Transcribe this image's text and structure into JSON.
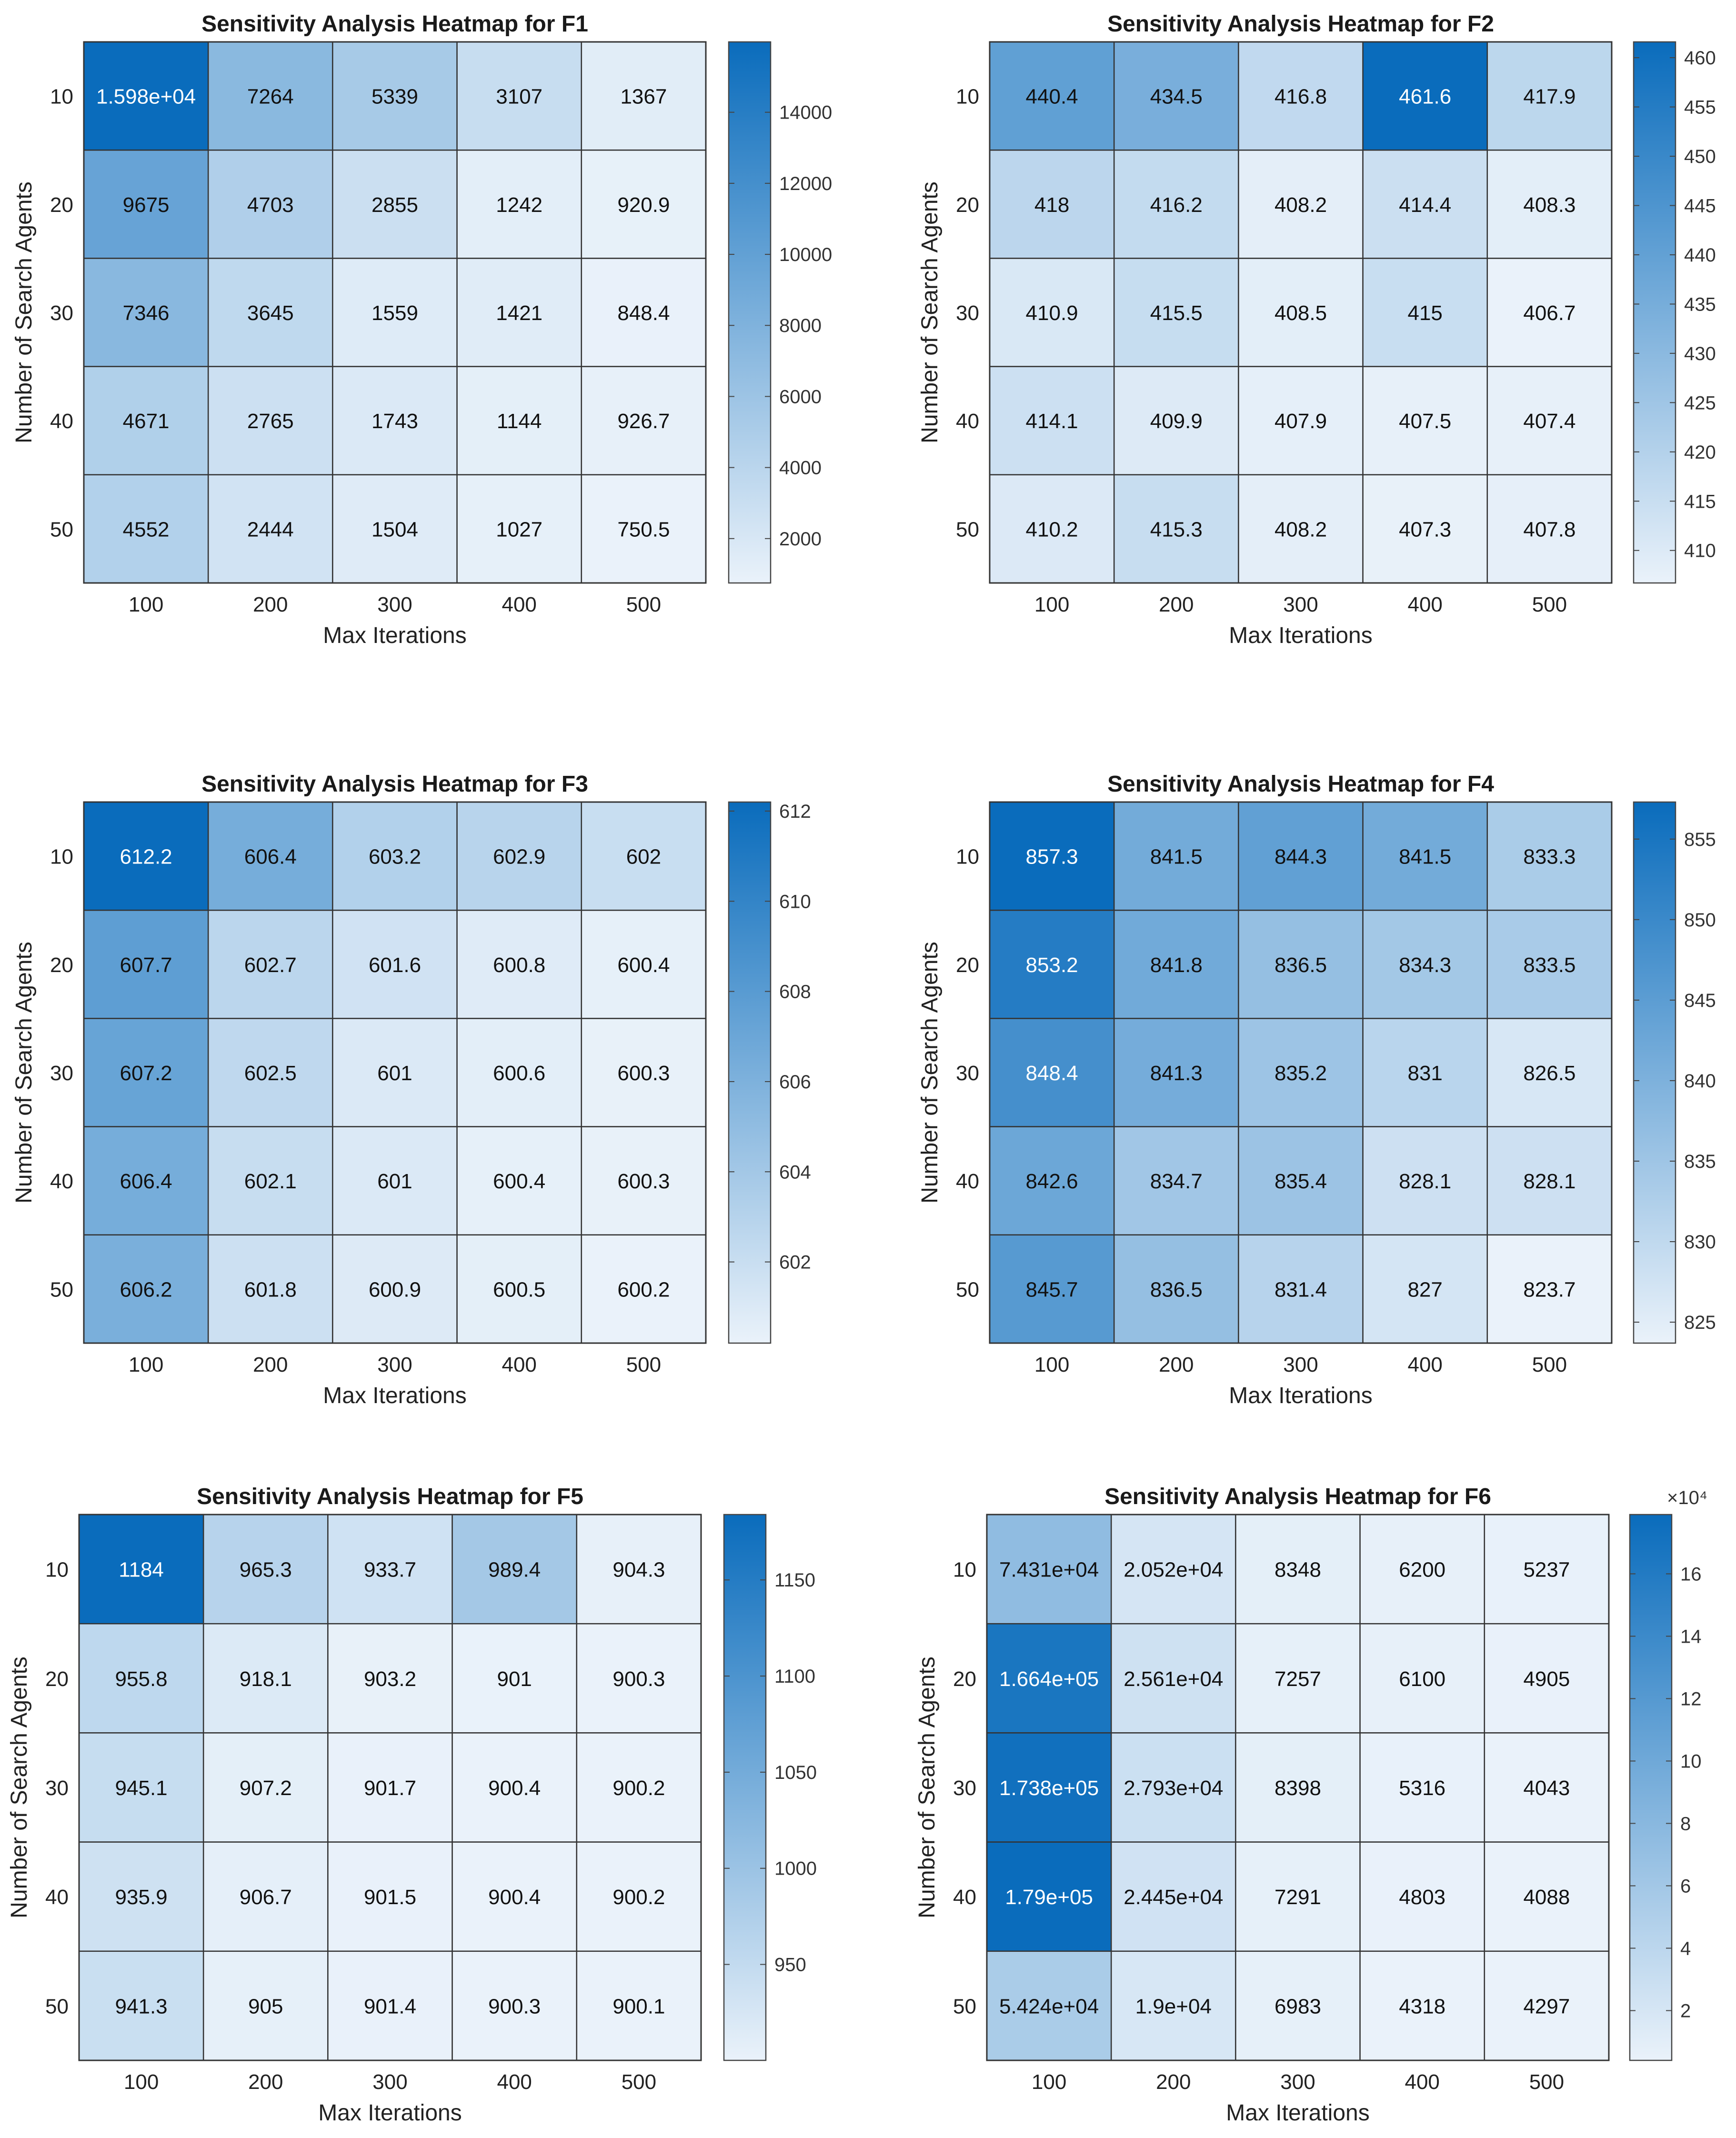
{
  "chart_data": [
    {
      "type": "heatmap",
      "title": "Sensitivity Analysis Heatmap for F1",
      "xlabel": "Max Iterations",
      "ylabel": "Number of Search Agents",
      "x_categories": [
        "100",
        "200",
        "300",
        "400",
        "500"
      ],
      "y_categories": [
        "10",
        "20",
        "30",
        "40",
        "50"
      ],
      "cell_labels": [
        [
          "1.598e+04",
          "7264",
          "5339",
          "3107",
          "1367"
        ],
        [
          "9675",
          "4703",
          "2855",
          "1242",
          "920.9"
        ],
        [
          "7346",
          "3645",
          "1559",
          "1421",
          "848.4"
        ],
        [
          "4671",
          "2765",
          "1743",
          "1144",
          "926.7"
        ],
        [
          "4552",
          "2444",
          "1504",
          "1027",
          "750.5"
        ]
      ],
      "values": [
        [
          15980,
          7264,
          5339,
          3107,
          1367
        ],
        [
          9675,
          4703,
          2855,
          1242,
          920.9
        ],
        [
          7346,
          3645,
          1559,
          1421,
          848.4
        ],
        [
          4671,
          2765,
          1743,
          1144,
          926.7
        ],
        [
          4552,
          2444,
          1504,
          1027,
          750.5
        ]
      ],
      "colorbar": {
        "range": [
          750.5,
          15980
        ],
        "ticks": [
          2000,
          4000,
          6000,
          8000,
          10000,
          12000,
          14000
        ],
        "tick_labels": [
          "2000",
          "4000",
          "6000",
          "8000",
          "10000",
          "12000",
          "14000"
        ],
        "exponent": ""
      }
    },
    {
      "type": "heatmap",
      "title": "Sensitivity Analysis Heatmap for F2",
      "xlabel": "Max Iterations",
      "ylabel": "Number of Search Agents",
      "x_categories": [
        "100",
        "200",
        "300",
        "400",
        "500"
      ],
      "y_categories": [
        "10",
        "20",
        "30",
        "40",
        "50"
      ],
      "cell_labels": [
        [
          "440.4",
          "434.5",
          "416.8",
          "461.6",
          "417.9"
        ],
        [
          "418",
          "416.2",
          "408.2",
          "414.4",
          "408.3"
        ],
        [
          "410.9",
          "415.5",
          "408.5",
          "415",
          "406.7"
        ],
        [
          "414.1",
          "409.9",
          "407.9",
          "407.5",
          "407.4"
        ],
        [
          "410.2",
          "415.3",
          "408.2",
          "407.3",
          "407.8"
        ]
      ],
      "values": [
        [
          440.4,
          434.5,
          416.8,
          461.6,
          417.9
        ],
        [
          418,
          416.2,
          408.2,
          414.4,
          408.3
        ],
        [
          410.9,
          415.5,
          408.5,
          415,
          406.7
        ],
        [
          414.1,
          409.9,
          407.9,
          407.5,
          407.4
        ],
        [
          410.2,
          415.3,
          408.2,
          407.3,
          407.8
        ]
      ],
      "colorbar": {
        "range": [
          406.7,
          461.6
        ],
        "ticks": [
          410,
          415,
          420,
          425,
          430,
          435,
          440,
          445,
          450,
          455,
          460
        ],
        "tick_labels": [
          "410",
          "415",
          "420",
          "425",
          "430",
          "435",
          "440",
          "445",
          "450",
          "455",
          "460"
        ],
        "exponent": ""
      }
    },
    {
      "type": "heatmap",
      "title": "Sensitivity Analysis Heatmap for F3",
      "xlabel": "Max Iterations",
      "ylabel": "Number of Search Agents",
      "x_categories": [
        "100",
        "200",
        "300",
        "400",
        "500"
      ],
      "y_categories": [
        "10",
        "20",
        "30",
        "40",
        "50"
      ],
      "cell_labels": [
        [
          "612.2",
          "606.4",
          "603.2",
          "602.9",
          "602"
        ],
        [
          "607.7",
          "602.7",
          "601.6",
          "600.8",
          "600.4"
        ],
        [
          "607.2",
          "602.5",
          "601",
          "600.6",
          "600.3"
        ],
        [
          "606.4",
          "602.1",
          "601",
          "600.4",
          "600.3"
        ],
        [
          "606.2",
          "601.8",
          "600.9",
          "600.5",
          "600.2"
        ]
      ],
      "values": [
        [
          612.2,
          606.4,
          603.2,
          602.9,
          602
        ],
        [
          607.7,
          602.7,
          601.6,
          600.8,
          600.4
        ],
        [
          607.2,
          602.5,
          601,
          600.6,
          600.3
        ],
        [
          606.4,
          602.1,
          601,
          600.4,
          600.3
        ],
        [
          606.2,
          601.8,
          600.9,
          600.5,
          600.2
        ]
      ],
      "colorbar": {
        "range": [
          600.2,
          612.2
        ],
        "ticks": [
          602,
          604,
          606,
          608,
          610,
          612
        ],
        "tick_labels": [
          "602",
          "604",
          "606",
          "608",
          "610",
          "612"
        ],
        "exponent": ""
      }
    },
    {
      "type": "heatmap",
      "title": "Sensitivity Analysis Heatmap for F4",
      "xlabel": "Max Iterations",
      "ylabel": "Number of Search Agents",
      "x_categories": [
        "100",
        "200",
        "300",
        "400",
        "500"
      ],
      "y_categories": [
        "10",
        "20",
        "30",
        "40",
        "50"
      ],
      "cell_labels": [
        [
          "857.3",
          "841.5",
          "844.3",
          "841.5",
          "833.3"
        ],
        [
          "853.2",
          "841.8",
          "836.5",
          "834.3",
          "833.5"
        ],
        [
          "848.4",
          "841.3",
          "835.2",
          "831",
          "826.5"
        ],
        [
          "842.6",
          "834.7",
          "835.4",
          "828.1",
          "828.1"
        ],
        [
          "845.7",
          "836.5",
          "831.4",
          "827",
          "823.7"
        ]
      ],
      "values": [
        [
          857.3,
          841.5,
          844.3,
          841.5,
          833.3
        ],
        [
          853.2,
          841.8,
          836.5,
          834.3,
          833.5
        ],
        [
          848.4,
          841.3,
          835.2,
          831,
          826.5
        ],
        [
          842.6,
          834.7,
          835.4,
          828.1,
          828.1
        ],
        [
          845.7,
          836.5,
          831.4,
          827,
          823.7
        ]
      ],
      "colorbar": {
        "range": [
          823.7,
          857.3
        ],
        "ticks": [
          825,
          830,
          835,
          840,
          845,
          850,
          855
        ],
        "tick_labels": [
          "825",
          "830",
          "835",
          "840",
          "845",
          "850",
          "855"
        ],
        "exponent": ""
      }
    },
    {
      "type": "heatmap",
      "title": "Sensitivity Analysis Heatmap for F5",
      "xlabel": "Max Iterations",
      "ylabel": "Number of Search Agents",
      "x_categories": [
        "100",
        "200",
        "300",
        "400",
        "500"
      ],
      "y_categories": [
        "10",
        "20",
        "30",
        "40",
        "50"
      ],
      "cell_labels": [
        [
          "1184",
          "965.3",
          "933.7",
          "989.4",
          "904.3"
        ],
        [
          "955.8",
          "918.1",
          "903.2",
          "901",
          "900.3"
        ],
        [
          "945.1",
          "907.2",
          "901.7",
          "900.4",
          "900.2"
        ],
        [
          "935.9",
          "906.7",
          "901.5",
          "900.4",
          "900.2"
        ],
        [
          "941.3",
          "905",
          "901.4",
          "900.3",
          "900.1"
        ]
      ],
      "values": [
        [
          1184,
          965.3,
          933.7,
          989.4,
          904.3
        ],
        [
          955.8,
          918.1,
          903.2,
          901,
          900.3
        ],
        [
          945.1,
          907.2,
          901.7,
          900.4,
          900.2
        ],
        [
          935.9,
          906.7,
          901.5,
          900.4,
          900.2
        ],
        [
          941.3,
          905,
          901.4,
          900.3,
          900.1
        ]
      ],
      "colorbar": {
        "range": [
          900.1,
          1184
        ],
        "ticks": [
          950,
          1000,
          1050,
          1100,
          1150
        ],
        "tick_labels": [
          "950",
          "1000",
          "1050",
          "1100",
          "1150"
        ],
        "exponent": ""
      }
    },
    {
      "type": "heatmap",
      "title": "Sensitivity Analysis Heatmap for F6",
      "xlabel": "Max Iterations",
      "ylabel": "Number of Search Agents",
      "x_categories": [
        "100",
        "200",
        "300",
        "400",
        "500"
      ],
      "y_categories": [
        "10",
        "20",
        "30",
        "40",
        "50"
      ],
      "cell_labels": [
        [
          "7.431e+04",
          "2.052e+04",
          "8348",
          "6200",
          "5237"
        ],
        [
          "1.664e+05",
          "2.561e+04",
          "7257",
          "6100",
          "4905"
        ],
        [
          "1.738e+05",
          "2.793e+04",
          "8398",
          "5316",
          "4043"
        ],
        [
          "1.79e+05",
          "2.445e+04",
          "7291",
          "4803",
          "4088"
        ],
        [
          "5.424e+04",
          "1.9e+04",
          "6983",
          "4318",
          "4297"
        ]
      ],
      "values": [
        [
          74310,
          20520,
          8348,
          6200,
          5237
        ],
        [
          166400,
          25610,
          7257,
          6100,
          4905
        ],
        [
          173800,
          27930,
          8398,
          5316,
          4043
        ],
        [
          179000,
          24450,
          7291,
          4803,
          4088
        ],
        [
          54240,
          19000,
          6983,
          4318,
          4297
        ]
      ],
      "colorbar": {
        "range": [
          4043,
          179000
        ],
        "ticks": [
          20000,
          40000,
          60000,
          80000,
          100000,
          120000,
          140000,
          160000
        ],
        "tick_labels": [
          "2",
          "4",
          "6",
          "8",
          "10",
          "12",
          "14",
          "16"
        ],
        "exponent": "×10⁴"
      }
    }
  ],
  "colors": {
    "low": "#eaf2fa",
    "high": "#0a6cbc",
    "grid": "#333333",
    "text_dark": "#111111",
    "text_light": "#ffffff"
  }
}
